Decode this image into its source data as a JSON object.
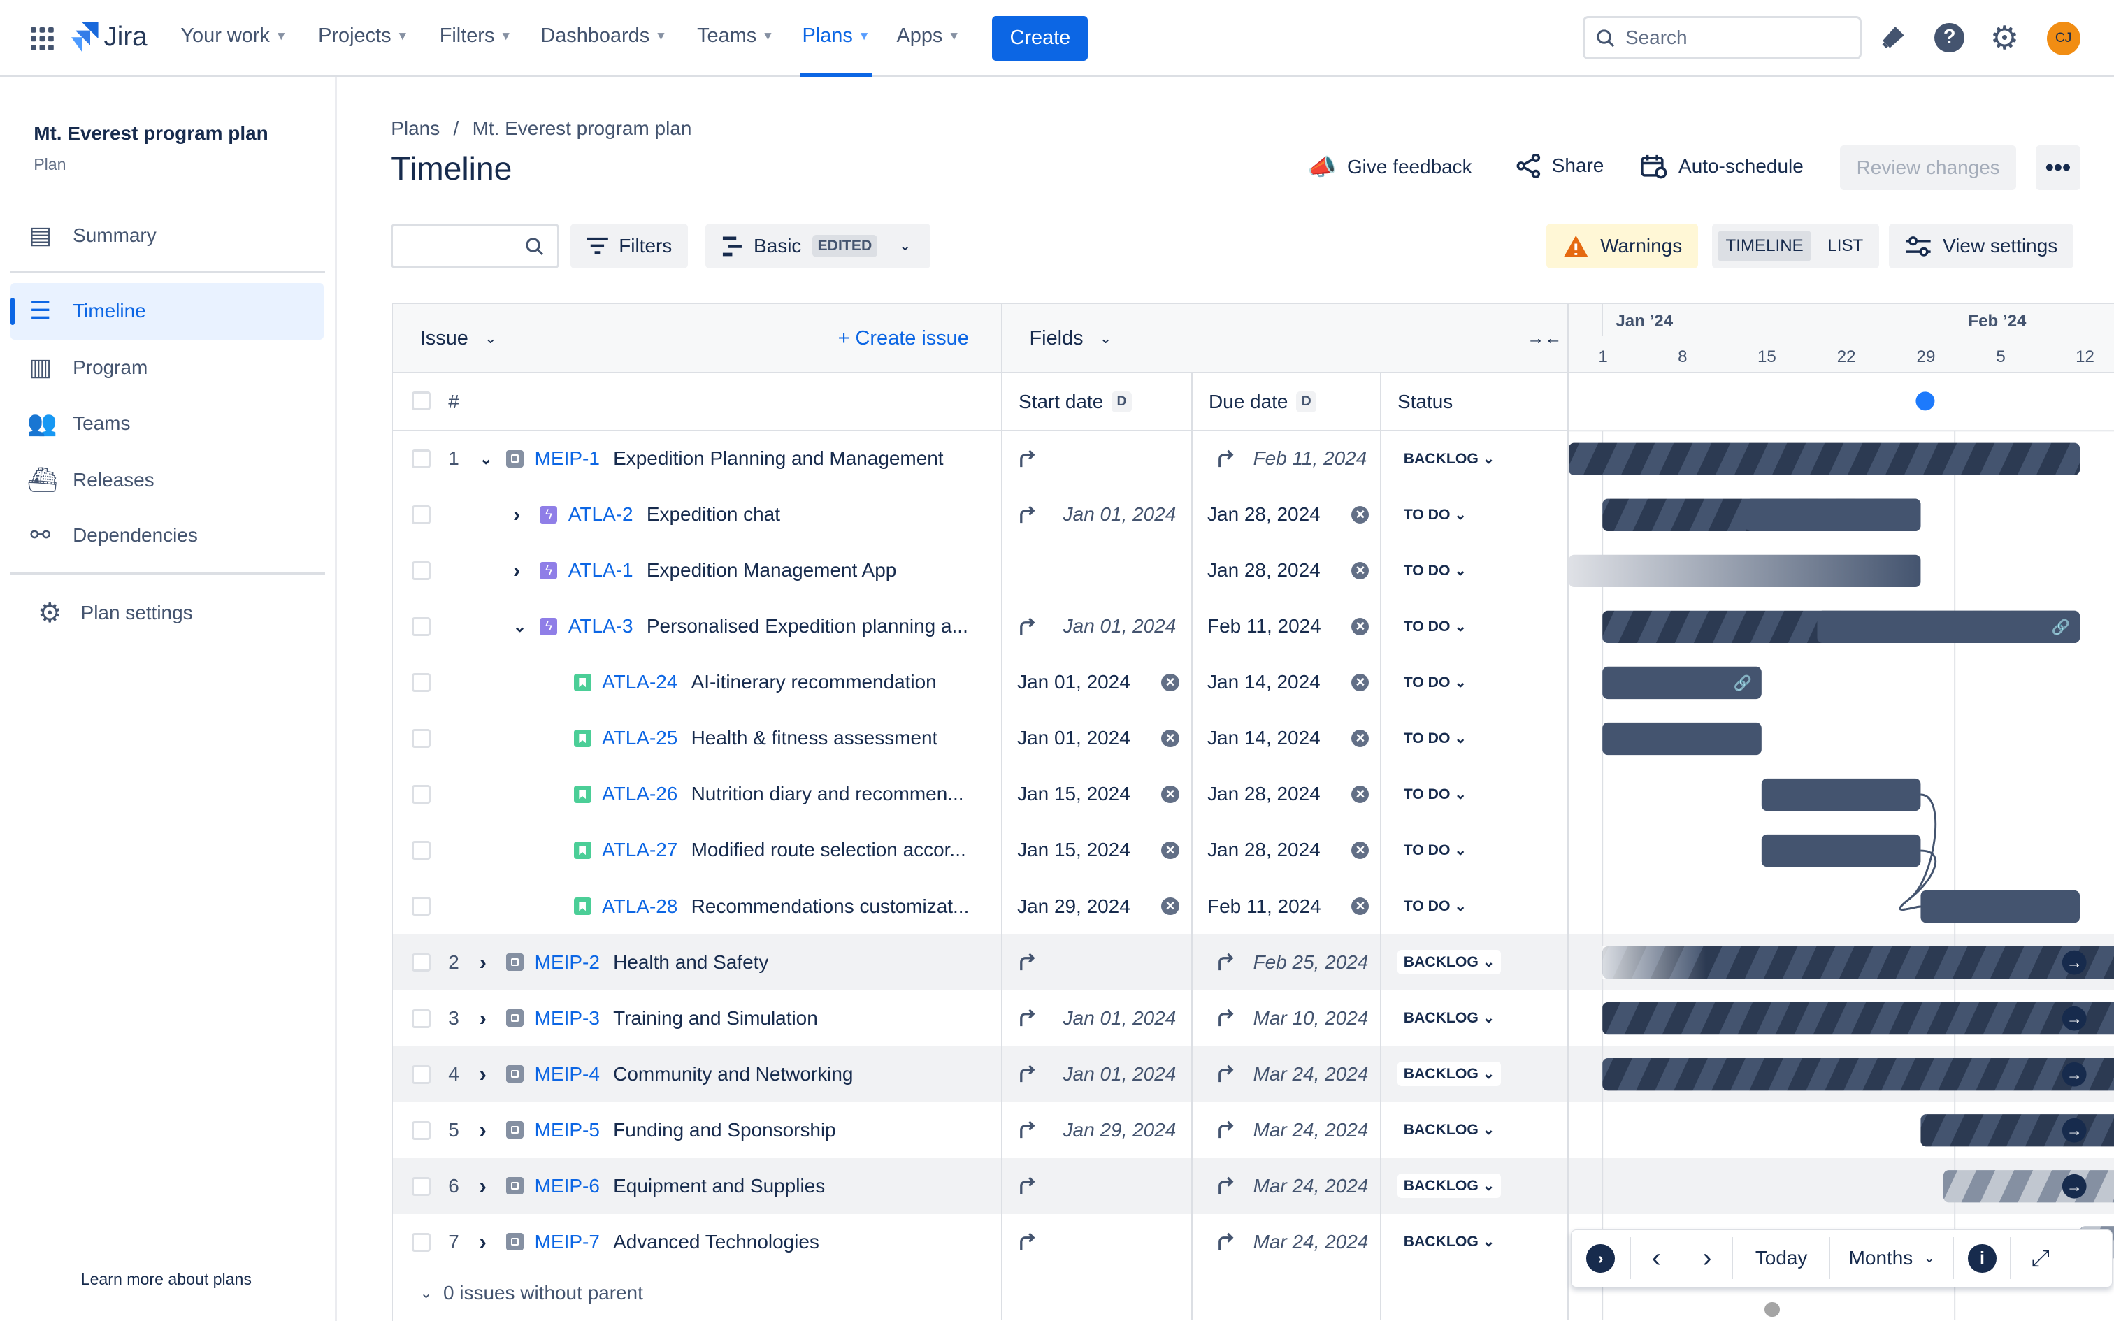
{
  "nav": {
    "app_name": "Jira",
    "items": [
      "Your work",
      "Projects",
      "Filters",
      "Dashboards",
      "Teams",
      "Plans",
      "Apps"
    ],
    "active": "Plans",
    "create_label": "Create",
    "search_placeholder": "Search",
    "avatar_initials": "CJ"
  },
  "sidebar": {
    "plan_name": "Mt. Everest program plan",
    "plan_type": "Plan",
    "items": [
      {
        "label": "Summary",
        "icon": "summary-icon"
      },
      {
        "label": "Timeline",
        "icon": "timeline-icon",
        "active": true
      },
      {
        "label": "Program",
        "icon": "program-icon"
      },
      {
        "label": "Teams",
        "icon": "teams-icon"
      },
      {
        "label": "Releases",
        "icon": "releases-icon"
      },
      {
        "label": "Dependencies",
        "icon": "dependencies-icon"
      }
    ],
    "settings_label": "Plan settings",
    "learn_more": "Learn more about plans"
  },
  "header": {
    "breadcrumb": [
      "Plans",
      "Mt. Everest program plan"
    ],
    "title": "Timeline",
    "give_feedback": "Give feedback",
    "share": "Share",
    "auto_schedule": "Auto-schedule",
    "review_changes": "Review changes"
  },
  "toolbar": {
    "filters": "Filters",
    "view": "Basic",
    "view_badge": "EDITED",
    "warnings": "Warnings",
    "timeline_tab": "TIMELINE",
    "list_tab": "LIST",
    "view_settings": "View settings"
  },
  "table": {
    "issue_header": "Issue",
    "create_issue": "+ Create issue",
    "fields_header": "Fields",
    "num_header": "#",
    "columns": [
      "Start date",
      "Due date",
      "Status"
    ],
    "col_badge": "D",
    "footer": "0 issues without parent"
  },
  "timeline": {
    "months": [
      "Jan ’24",
      "Feb ’24"
    ],
    "days": [
      "1",
      "8",
      "15",
      "22",
      "29",
      "5",
      "12"
    ],
    "today": "2024-01-29",
    "accent": "#1d7afc",
    "controls": {
      "today": "Today",
      "scale": "Months"
    }
  },
  "rows": [
    {
      "num": "1",
      "level": 0,
      "expand": "down",
      "key": "MEIP-1",
      "type": "initiative",
      "summary": "Expedition Planning and Management",
      "start": "",
      "start_inh": true,
      "due": "Feb 11, 2024",
      "due_inh": true,
      "status": "BACKLOG",
      "bar": {
        "start": "2023-12-28",
        "end": "2024-02-11",
        "style": "stripe"
      }
    },
    {
      "num": "",
      "level": 1,
      "expand": "right",
      "key": "ATLA-2",
      "type": "epic",
      "summary": "Expedition chat",
      "start": "Jan 01, 2024",
      "start_inh": true,
      "due": "Jan 28, 2024",
      "due_clear": true,
      "status": "TO DO",
      "bar": {
        "start": "2024-01-01",
        "end": "2024-01-28",
        "style": "stripe-fade"
      }
    },
    {
      "num": "",
      "level": 1,
      "expand": "right",
      "key": "ATLA-1",
      "type": "epic",
      "summary": "Expedition Management App",
      "start": "",
      "due": "Jan 28, 2024",
      "due_clear": true,
      "status": "TO DO",
      "bar": {
        "start": "2023-12-28",
        "end": "2024-01-28",
        "style": "gradient"
      }
    },
    {
      "num": "",
      "level": 1,
      "expand": "down",
      "key": "ATLA-3",
      "type": "epic",
      "summary": "Personalised Expedition planning a...",
      "start": "Jan 01, 2024",
      "start_inh": true,
      "due": "Feb 11, 2024",
      "due_clear": true,
      "status": "TO DO",
      "bar": {
        "start": "2024-01-01",
        "end": "2024-02-11",
        "style": "stripe-fade",
        "link": true
      }
    },
    {
      "num": "",
      "level": 2,
      "key": "ATLA-24",
      "type": "story",
      "summary": "AI-itinerary recommendation",
      "start": "Jan 01, 2024",
      "start_clear": true,
      "due": "Jan 14, 2024",
      "due_clear": true,
      "status": "TO DO",
      "bar": {
        "start": "2024-01-01",
        "end": "2024-01-14",
        "style": "solid",
        "link": true
      }
    },
    {
      "num": "",
      "level": 2,
      "key": "ATLA-25",
      "type": "story",
      "summary": "Health & fitness assessment",
      "start": "Jan 01, 2024",
      "start_clear": true,
      "due": "Jan 14, 2024",
      "due_clear": true,
      "status": "TO DO",
      "bar": {
        "start": "2024-01-01",
        "end": "2024-01-14",
        "style": "solid"
      }
    },
    {
      "num": "",
      "level": 2,
      "key": "ATLA-26",
      "type": "story",
      "summary": "Nutrition diary and recommen...",
      "start": "Jan 15, 2024",
      "start_clear": true,
      "due": "Jan 28, 2024",
      "due_clear": true,
      "status": "TO DO",
      "bar": {
        "start": "2024-01-15",
        "end": "2024-01-28",
        "style": "solid"
      }
    },
    {
      "num": "",
      "level": 2,
      "key": "ATLA-27",
      "type": "story",
      "summary": "Modified route selection accor...",
      "start": "Jan 15, 2024",
      "start_clear": true,
      "due": "Jan 28, 2024",
      "due_clear": true,
      "status": "TO DO",
      "bar": {
        "start": "2024-01-15",
        "end": "2024-01-28",
        "style": "solid"
      }
    },
    {
      "num": "",
      "level": 2,
      "key": "ATLA-28",
      "type": "story",
      "summary": "Recommendations customizat...",
      "start": "Jan 29, 2024",
      "start_clear": true,
      "due": "Feb 11, 2024",
      "due_clear": true,
      "status": "TO DO",
      "bar": {
        "start": "2024-01-29",
        "end": "2024-02-11",
        "style": "solid"
      }
    },
    {
      "num": "2",
      "level": 0,
      "expand": "right",
      "key": "MEIP-2",
      "type": "initiative",
      "summary": "Health and Safety",
      "start": "",
      "start_inh": true,
      "due": "Feb 25, 2024",
      "due_inh": true,
      "status": "BACKLOG",
      "shade": true,
      "bar": {
        "start": "2024-01-01",
        "end": "2024-02-25",
        "style": "stripe-in",
        "arrow": true
      }
    },
    {
      "num": "3",
      "level": 0,
      "expand": "right",
      "key": "MEIP-3",
      "type": "initiative",
      "summary": "Training and Simulation",
      "start": "Jan 01, 2024",
      "start_inh": true,
      "due": "Mar 10, 2024",
      "due_inh": true,
      "status": "BACKLOG",
      "bar": {
        "start": "2024-01-01",
        "end": "2024-03-10",
        "style": "stripe",
        "arrow": true
      }
    },
    {
      "num": "4",
      "level": 0,
      "expand": "right",
      "key": "MEIP-4",
      "type": "initiative",
      "summary": "Community and Networking",
      "start": "Jan 01, 2024",
      "start_inh": true,
      "due": "Mar 24, 2024",
      "due_inh": true,
      "status": "BACKLOG",
      "shade": true,
      "bar": {
        "start": "2024-01-01",
        "end": "2024-03-24",
        "style": "stripe",
        "arrow": true
      }
    },
    {
      "num": "5",
      "level": 0,
      "expand": "right",
      "key": "MEIP-5",
      "type": "initiative",
      "summary": "Funding and Sponsorship",
      "start": "Jan 29, 2024",
      "start_inh": true,
      "due": "Mar 24, 2024",
      "due_inh": true,
      "status": "BACKLOG",
      "bar": {
        "start": "2024-01-29",
        "end": "2024-03-24",
        "style": "stripe",
        "arrow": true
      }
    },
    {
      "num": "6",
      "level": 0,
      "expand": "right",
      "key": "MEIP-6",
      "type": "initiative",
      "summary": "Equipment and Supplies",
      "start": "",
      "start_inh": true,
      "due": "Mar 24, 2024",
      "due_inh": true,
      "status": "BACKLOG",
      "shade": true,
      "bar": {
        "start": "2024-01-31",
        "end": "2024-03-24",
        "style": "stripe-light",
        "arrow": true
      }
    },
    {
      "num": "7",
      "level": 0,
      "expand": "right",
      "key": "MEIP-7",
      "type": "initiative",
      "summary": "Advanced Technologies",
      "start": "",
      "start_inh": true,
      "due": "Mar 24, 2024",
      "due_inh": true,
      "status": "BACKLOG",
      "bar": {
        "start": "2024-02-12",
        "end": "2024-03-24",
        "style": "stripe-light",
        "arrow": true
      }
    }
  ]
}
